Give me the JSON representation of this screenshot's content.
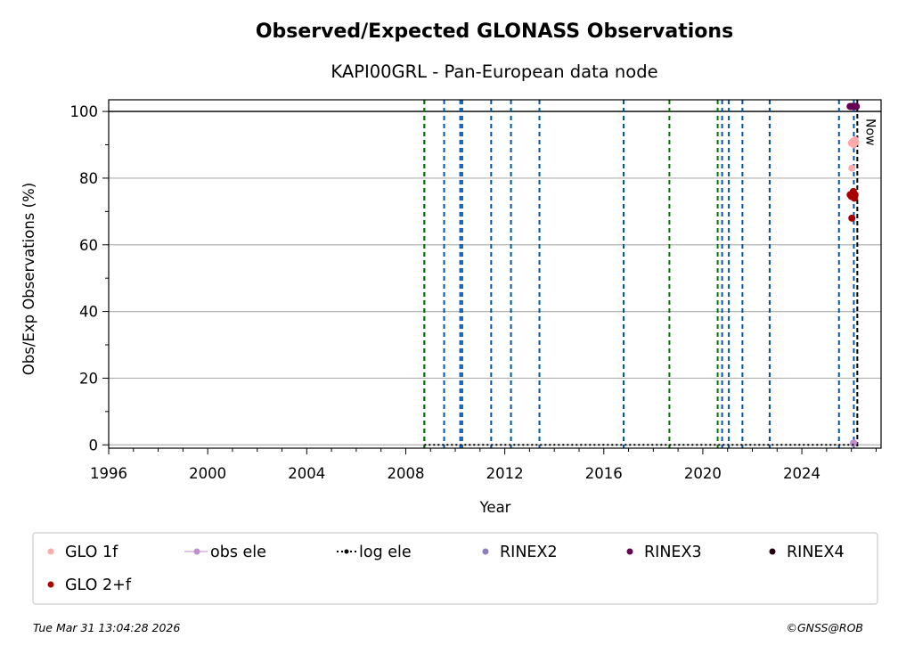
{
  "chart_data": {
    "type": "scatter",
    "title": "Observed/Expected GLONASS Observations",
    "subtitle": "KAPI00GRL - Pan-European data node",
    "xlabel": "Year",
    "ylabel": "Obs/Exp Observations (%)",
    "xlim": [
      1996,
      2027.2
    ],
    "ylim": [
      -1,
      103.5
    ],
    "x_ticks": [
      1996,
      2000,
      2004,
      2008,
      2012,
      2016,
      2020,
      2024
    ],
    "y_ticks": [
      0,
      20,
      40,
      60,
      80,
      100
    ],
    "grid": "horizontal",
    "reference_line": 100,
    "now": {
      "x": 2026.24,
      "label": "Now"
    },
    "event_lines": [
      {
        "x": 2008.75,
        "color": "#cc0000"
      },
      {
        "x": 2008.75,
        "color": "#007700"
      },
      {
        "x": 2009.55,
        "color": "#0055aa"
      },
      {
        "x": 2010.2,
        "color": "#0055aa"
      },
      {
        "x": 2010.28,
        "color": "#0055aa"
      },
      {
        "x": 2011.45,
        "color": "#0055aa"
      },
      {
        "x": 2012.25,
        "color": "#0055aa"
      },
      {
        "x": 2013.4,
        "color": "#0055aa"
      },
      {
        "x": 2016.8,
        "color": "#0055aa"
      },
      {
        "x": 2018.65,
        "color": "#007700"
      },
      {
        "x": 2020.6,
        "color": "#007700"
      },
      {
        "x": 2020.78,
        "color": "#0055aa"
      },
      {
        "x": 2021.05,
        "color": "#0055aa"
      },
      {
        "x": 2021.6,
        "color": "#0055aa"
      },
      {
        "x": 2022.7,
        "color": "#cc0000"
      },
      {
        "x": 2022.7,
        "color": "#0055aa"
      },
      {
        "x": 2025.5,
        "color": "#0055aa"
      },
      {
        "x": 2026.1,
        "color": "#0055aa"
      }
    ],
    "series": [
      {
        "name": "GLO 1f",
        "color": "#ffaaaa",
        "marker": "dot",
        "x": [
          2026.0,
          2026.05,
          2026.1,
          2026.15,
          2026.18,
          2026.02
        ],
        "y": [
          90.5,
          91,
          90,
          91.5,
          90.8,
          83
        ]
      },
      {
        "name": "obs ele",
        "color": "#c38ecf",
        "marker": "line-dot",
        "x": [
          2026.08,
          2026.1
        ],
        "y": [
          0.5,
          0.5
        ]
      },
      {
        "name": "log ele",
        "color": "#000000",
        "marker": "dotted-line",
        "x": [
          2008.75,
          2026.24
        ],
        "y": [
          0,
          0
        ]
      },
      {
        "name": "RINEX2",
        "color": "#8e7ebf",
        "marker": "dot",
        "x": [],
        "y": []
      },
      {
        "name": "RINEX3",
        "color": "#660055",
        "marker": "dot",
        "x": [
          2025.95,
          2026.0,
          2026.05,
          2026.1,
          2026.15,
          2026.2
        ],
        "y": [
          101.5,
          101.5,
          101.5,
          101.5,
          101.5,
          101.5
        ]
      },
      {
        "name": "RINEX4",
        "color": "#220011",
        "marker": "dot",
        "x": [],
        "y": []
      },
      {
        "name": "GLO 2+f",
        "color": "#aa0000",
        "marker": "dot",
        "x": [
          2025.95,
          2026.0,
          2026.05,
          2026.08,
          2026.12,
          2026.15,
          2026.02
        ],
        "y": [
          75,
          74.5,
          75.5,
          76,
          74,
          75,
          68
        ]
      }
    ],
    "legend_position": "bottom"
  },
  "footer": {
    "timestamp": "Tue Mar 31 13:04:28 2026",
    "credit": "©GNSS@ROB"
  }
}
